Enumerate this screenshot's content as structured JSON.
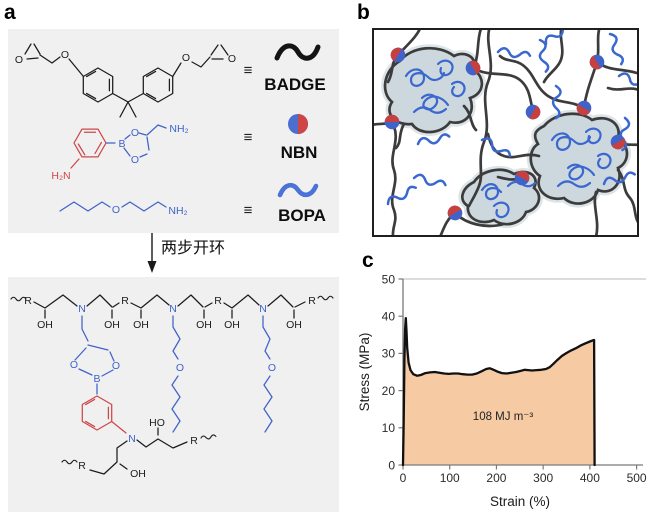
{
  "figure": {
    "panel_a": {
      "label": "a",
      "equiv_symbol": "≡",
      "arrow_label": "两步开环",
      "legend": [
        {
          "name": "BADGE",
          "icon": "black-wave-icon"
        },
        {
          "name": "NBN",
          "icon": "blue-red-split-circle-icon"
        },
        {
          "name": "BOPA",
          "icon": "blue-wave-icon"
        }
      ],
      "atoms": {
        "O": "O",
        "OH": "OH",
        "HO": "HO",
        "N": "N",
        "B": "B",
        "R": "R",
        "NH2": "NH₂",
        "H2N": "H₂N"
      }
    },
    "panel_b": {
      "label": "b"
    },
    "panel_c": {
      "label": "c"
    },
    "colors": {
      "structure_blue": "#3f63c8",
      "structure_red": "#cf4747",
      "network_chain": "#3c3c3c",
      "aggregate_blob": "#ccd7de",
      "panel_box_gray": "#f0f0f1"
    }
  },
  "chart_data": {
    "type": "area",
    "title": "",
    "xlabel": "Strain (%)",
    "ylabel": "Stress (MPa)",
    "annotation": "108 MJ m⁻³",
    "xlim": [
      0,
      500
    ],
    "ylim": [
      0,
      50
    ],
    "xticks": [
      0,
      100,
      200,
      300,
      400,
      500
    ],
    "yticks": [
      0,
      10,
      20,
      30,
      40,
      50
    ],
    "grid": false,
    "legend_position": "none",
    "fill_color": "#F6CBA3",
    "line_color": "#111111",
    "points": [
      [
        0,
        0
      ],
      [
        1.5,
        12
      ],
      [
        3,
        28
      ],
      [
        4.5,
        36.5
      ],
      [
        6,
        39.5
      ],
      [
        7.5,
        36
      ],
      [
        9,
        31.5
      ],
      [
        12,
        27.5
      ],
      [
        16,
        25.5
      ],
      [
        22,
        24.4
      ],
      [
        30,
        24.0
      ],
      [
        38,
        24.2
      ],
      [
        48,
        24.7
      ],
      [
        58,
        24.9
      ],
      [
        68,
        25.0
      ],
      [
        78,
        24.8
      ],
      [
        88,
        24.6
      ],
      [
        98,
        24.5
      ],
      [
        108,
        24.6
      ],
      [
        118,
        24.6
      ],
      [
        128,
        24.4
      ],
      [
        138,
        24.3
      ],
      [
        148,
        24.3
      ],
      [
        158,
        24.6
      ],
      [
        168,
        25.2
      ],
      [
        178,
        25.8
      ],
      [
        186,
        26.0
      ],
      [
        194,
        25.6
      ],
      [
        202,
        25.1
      ],
      [
        212,
        24.7
      ],
      [
        222,
        24.6
      ],
      [
        232,
        24.8
      ],
      [
        242,
        25.0
      ],
      [
        252,
        25.3
      ],
      [
        260,
        25.6
      ],
      [
        268,
        25.5
      ],
      [
        276,
        25.4
      ],
      [
        286,
        25.5
      ],
      [
        296,
        25.6
      ],
      [
        306,
        25.8
      ],
      [
        314,
        26.3
      ],
      [
        322,
        27.2
      ],
      [
        330,
        28.2
      ],
      [
        340,
        29.3
      ],
      [
        350,
        30.1
      ],
      [
        360,
        30.8
      ],
      [
        370,
        31.4
      ],
      [
        380,
        32.1
      ],
      [
        390,
        32.7
      ],
      [
        400,
        33.2
      ],
      [
        406,
        33.5
      ],
      [
        409,
        33.6
      ],
      [
        410,
        0
      ]
    ]
  }
}
